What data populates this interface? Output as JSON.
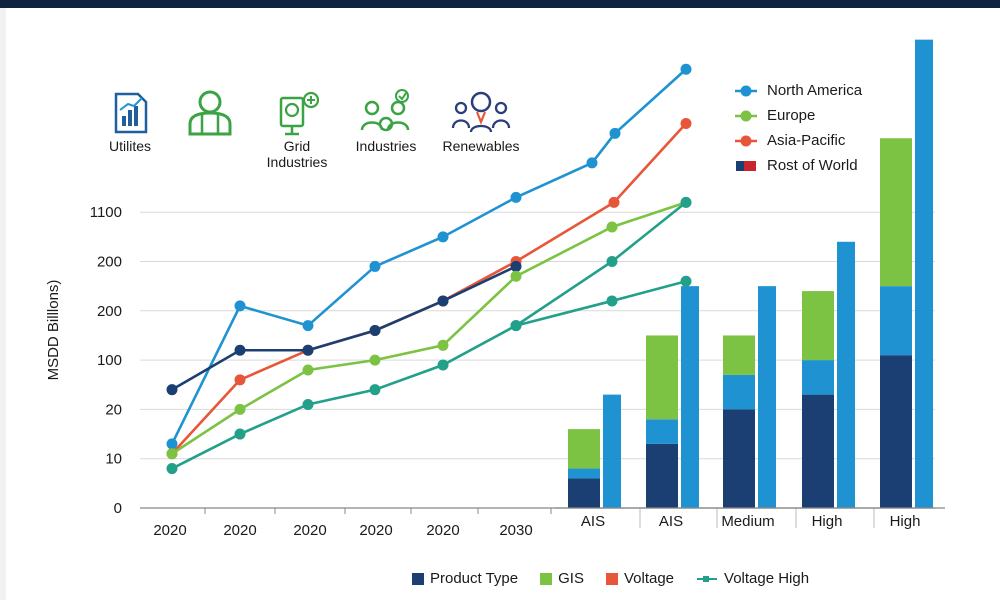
{
  "icons": [
    {
      "name": "utilities",
      "label": "Utilites",
      "color": "#1f5f9e"
    },
    {
      "name": "grid-industries",
      "label": "Grid\nIndustries",
      "color": "#3aa344"
    },
    {
      "name": "industries",
      "label": "Industries",
      "color": "#3aa344"
    },
    {
      "name": "renewables",
      "label": "Renewables",
      "color": "#2c3e7a"
    }
  ],
  "legend_top": [
    {
      "name": "North America",
      "color": "#1f93d2",
      "marker": "circle"
    },
    {
      "name": "Europe",
      "color": "#7cc243",
      "marker": "circle"
    },
    {
      "name": "Asia-Pacific",
      "color": "#e8563a",
      "marker": "circle"
    },
    {
      "name": "Rost of World",
      "color": "#c8262c",
      "marker": "flag"
    }
  ],
  "legend_bottom": [
    {
      "name": "Product Type",
      "color": "#1c3f73",
      "marker": "square"
    },
    {
      "name": "GIS",
      "color": "#7cc243",
      "marker": "square"
    },
    {
      "name": "Voltage",
      "color": "#e8563a",
      "marker": "square"
    },
    {
      "name": "Voltage High",
      "color": "#22a08a",
      "marker": "line"
    }
  ],
  "chart_data": [
    {
      "type": "line",
      "ylabel": "MSDD Billlons)",
      "y_tick_labels": [
        "0",
        "10",
        "20",
        "100",
        "200",
        "200",
        "1100"
      ],
      "x_tick_labels": [
        "2020",
        "2020",
        "2020",
        "2020",
        "2020",
        "2030"
      ],
      "grid": true,
      "series": [
        {
          "name": "North America",
          "color": "#1f93d2",
          "values": [
            1.3,
            4.1,
            3.7,
            4.9,
            5.5,
            6.3,
            7.0,
            7.6,
            8.9
          ]
        },
        {
          "name": "Asia-Pacific",
          "color": "#e8563a",
          "values": [
            1.1,
            2.6,
            3.2,
            3.6,
            4.2,
            5.0,
            6.2,
            7.8
          ]
        },
        {
          "name": "",
          "color": "#1c3f73",
          "values": [
            2.4,
            3.2,
            3.2,
            3.6,
            4.2,
            4.9
          ]
        },
        {
          "name": "Europe",
          "color": "#7cc243",
          "values": [
            1.1,
            2.0,
            2.8,
            3.0,
            3.3,
            4.7,
            5.7,
            6.2
          ]
        },
        {
          "name": "Voltage High",
          "color": "#22a08a",
          "values": [
            0.8,
            1.5,
            2.1,
            2.4,
            2.9,
            3.7,
            5.0,
            6.2
          ]
        },
        {
          "name": "Voltage High",
          "color": "#22a08a",
          "values": [
            3.7,
            4.2,
            4.6
          ]
        }
      ]
    },
    {
      "type": "bar",
      "categories": [
        "AIS",
        "AIS",
        "Medium",
        "High",
        "High"
      ],
      "stacked_series": [
        {
          "name": "Product Type",
          "color": "#1c3f73",
          "values": [
            0.6,
            1.3,
            2.0,
            2.3,
            3.1
          ]
        },
        {
          "name": "Voltage",
          "color": "#1f93d2",
          "values": [
            0.2,
            0.5,
            0.7,
            0.7,
            1.4
          ]
        },
        {
          "name": "GIS",
          "color": "#7cc243",
          "values": [
            0.8,
            1.7,
            0.8,
            1.4,
            3.0
          ]
        }
      ],
      "side_bar": {
        "color": "#1f93d2",
        "values": [
          2.3,
          4.5,
          4.5,
          5.4,
          9.5
        ]
      }
    }
  ]
}
